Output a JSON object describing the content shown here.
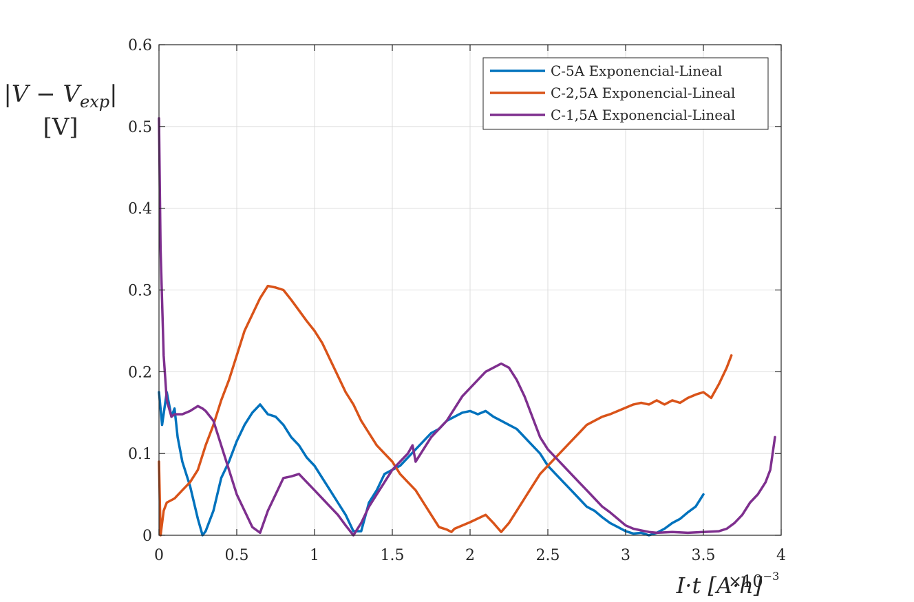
{
  "chart_data": {
    "type": "line",
    "title": "",
    "xlabel": "I·t [A·h]",
    "ylabel_line1": "|V − V",
    "ylabel_sub": "exp",
    "ylabel_line1_end": "|",
    "ylabel_line2": "[V]",
    "x_exponent_label": "×10",
    "x_exponent_power": "−3",
    "xlim": [
      0,
      4
    ],
    "ylim": [
      0,
      0.6
    ],
    "xticks": [
      0,
      0.5,
      1,
      1.5,
      2,
      2.5,
      3,
      3.5,
      4
    ],
    "xtick_labels": [
      "0",
      "0.5",
      "1",
      "1.5",
      "2",
      "2.5",
      "3",
      "3.5",
      "4"
    ],
    "yticks": [
      0,
      0.1,
      0.2,
      0.3,
      0.4,
      0.5,
      0.6
    ],
    "ytick_labels": [
      "0",
      "0.1",
      "0.2",
      "0.3",
      "0.4",
      "0.5",
      "0.6"
    ],
    "grid": true,
    "legend_position": "top-right",
    "series": [
      {
        "name": "C-5A Exponencial-Lineal",
        "color": "#0072BD",
        "points": [
          [
            0,
            0.175
          ],
          [
            0.02,
            0.135
          ],
          [
            0.05,
            0.175
          ],
          [
            0.08,
            0.145
          ],
          [
            0.1,
            0.155
          ],
          [
            0.12,
            0.12
          ],
          [
            0.15,
            0.09
          ],
          [
            0.2,
            0.06
          ],
          [
            0.25,
            0.02
          ],
          [
            0.28,
            0.0
          ],
          [
            0.3,
            0.005
          ],
          [
            0.35,
            0.03
          ],
          [
            0.4,
            0.07
          ],
          [
            0.45,
            0.09
          ],
          [
            0.5,
            0.115
          ],
          [
            0.55,
            0.135
          ],
          [
            0.6,
            0.15
          ],
          [
            0.65,
            0.16
          ],
          [
            0.7,
            0.148
          ],
          [
            0.75,
            0.145
          ],
          [
            0.8,
            0.135
          ],
          [
            0.85,
            0.12
          ],
          [
            0.9,
            0.11
          ],
          [
            0.95,
            0.095
          ],
          [
            1.0,
            0.085
          ],
          [
            1.05,
            0.07
          ],
          [
            1.1,
            0.055
          ],
          [
            1.15,
            0.04
          ],
          [
            1.2,
            0.025
          ],
          [
            1.25,
            0.005
          ],
          [
            1.3,
            0.005
          ],
          [
            1.35,
            0.04
          ],
          [
            1.4,
            0.055
          ],
          [
            1.45,
            0.075
          ],
          [
            1.5,
            0.08
          ],
          [
            1.55,
            0.085
          ],
          [
            1.6,
            0.095
          ],
          [
            1.65,
            0.105
          ],
          [
            1.7,
            0.115
          ],
          [
            1.75,
            0.125
          ],
          [
            1.8,
            0.13
          ],
          [
            1.85,
            0.14
          ],
          [
            1.9,
            0.145
          ],
          [
            1.95,
            0.15
          ],
          [
            2.0,
            0.152
          ],
          [
            2.05,
            0.148
          ],
          [
            2.1,
            0.152
          ],
          [
            2.15,
            0.145
          ],
          [
            2.2,
            0.14
          ],
          [
            2.25,
            0.135
          ],
          [
            2.3,
            0.13
          ],
          [
            2.35,
            0.12
          ],
          [
            2.4,
            0.11
          ],
          [
            2.45,
            0.1
          ],
          [
            2.5,
            0.085
          ],
          [
            2.55,
            0.075
          ],
          [
            2.6,
            0.065
          ],
          [
            2.65,
            0.055
          ],
          [
            2.7,
            0.045
          ],
          [
            2.75,
            0.035
          ],
          [
            2.8,
            0.03
          ],
          [
            2.85,
            0.022
          ],
          [
            2.9,
            0.015
          ],
          [
            2.95,
            0.01
          ],
          [
            3.0,
            0.005
          ],
          [
            3.05,
            0.002
          ],
          [
            3.1,
            0.003
          ],
          [
            3.15,
            0.0
          ],
          [
            3.2,
            0.003
          ],
          [
            3.25,
            0.008
          ],
          [
            3.3,
            0.015
          ],
          [
            3.35,
            0.02
          ],
          [
            3.4,
            0.028
          ],
          [
            3.45,
            0.035
          ],
          [
            3.5,
            0.05
          ]
        ]
      },
      {
        "name": "C-2,5A Exponencial-Lineal",
        "color": "#D95319",
        "points": [
          [
            0,
            0.09
          ],
          [
            0.01,
            0.0
          ],
          [
            0.03,
            0.03
          ],
          [
            0.05,
            0.04
          ],
          [
            0.1,
            0.045
          ],
          [
            0.15,
            0.055
          ],
          [
            0.2,
            0.065
          ],
          [
            0.25,
            0.08
          ],
          [
            0.3,
            0.11
          ],
          [
            0.35,
            0.135
          ],
          [
            0.4,
            0.165
          ],
          [
            0.45,
            0.19
          ],
          [
            0.5,
            0.22
          ],
          [
            0.55,
            0.25
          ],
          [
            0.6,
            0.27
          ],
          [
            0.65,
            0.29
          ],
          [
            0.7,
            0.305
          ],
          [
            0.75,
            0.303
          ],
          [
            0.8,
            0.3
          ],
          [
            0.85,
            0.288
          ],
          [
            0.9,
            0.275
          ],
          [
            0.95,
            0.262
          ],
          [
            1.0,
            0.25
          ],
          [
            1.05,
            0.235
          ],
          [
            1.1,
            0.215
          ],
          [
            1.15,
            0.195
          ],
          [
            1.2,
            0.175
          ],
          [
            1.25,
            0.16
          ],
          [
            1.3,
            0.14
          ],
          [
            1.35,
            0.125
          ],
          [
            1.4,
            0.11
          ],
          [
            1.45,
            0.1
          ],
          [
            1.5,
            0.09
          ],
          [
            1.55,
            0.075
          ],
          [
            1.6,
            0.065
          ],
          [
            1.65,
            0.055
          ],
          [
            1.7,
            0.04
          ],
          [
            1.75,
            0.025
          ],
          [
            1.8,
            0.01
          ],
          [
            1.85,
            0.007
          ],
          [
            1.88,
            0.004
          ],
          [
            1.9,
            0.008
          ],
          [
            2.0,
            0.016
          ],
          [
            2.1,
            0.025
          ],
          [
            2.15,
            0.015
          ],
          [
            2.2,
            0.004
          ],
          [
            2.25,
            0.015
          ],
          [
            2.3,
            0.03
          ],
          [
            2.35,
            0.045
          ],
          [
            2.4,
            0.06
          ],
          [
            2.45,
            0.075
          ],
          [
            2.5,
            0.085
          ],
          [
            2.55,
            0.095
          ],
          [
            2.6,
            0.105
          ],
          [
            2.65,
            0.115
          ],
          [
            2.7,
            0.125
          ],
          [
            2.75,
            0.135
          ],
          [
            2.8,
            0.14
          ],
          [
            2.85,
            0.145
          ],
          [
            2.9,
            0.148
          ],
          [
            2.95,
            0.152
          ],
          [
            3.0,
            0.156
          ],
          [
            3.05,
            0.16
          ],
          [
            3.1,
            0.162
          ],
          [
            3.15,
            0.16
          ],
          [
            3.2,
            0.165
          ],
          [
            3.25,
            0.16
          ],
          [
            3.3,
            0.165
          ],
          [
            3.35,
            0.162
          ],
          [
            3.4,
            0.168
          ],
          [
            3.45,
            0.172
          ],
          [
            3.5,
            0.175
          ],
          [
            3.55,
            0.168
          ],
          [
            3.6,
            0.185
          ],
          [
            3.65,
            0.205
          ],
          [
            3.68,
            0.22
          ]
        ]
      },
      {
        "name": "C-1,5A Exponencial-Lineal",
        "color": "#7E2F8E",
        "points": [
          [
            0,
            0.51
          ],
          [
            0.01,
            0.35
          ],
          [
            0.03,
            0.22
          ],
          [
            0.05,
            0.165
          ],
          [
            0.08,
            0.145
          ],
          [
            0.1,
            0.148
          ],
          [
            0.15,
            0.148
          ],
          [
            0.2,
            0.152
          ],
          [
            0.25,
            0.158
          ],
          [
            0.28,
            0.155
          ],
          [
            0.3,
            0.152
          ],
          [
            0.35,
            0.14
          ],
          [
            0.4,
            0.11
          ],
          [
            0.45,
            0.08
          ],
          [
            0.5,
            0.05
          ],
          [
            0.55,
            0.03
          ],
          [
            0.6,
            0.01
          ],
          [
            0.65,
            0.003
          ],
          [
            0.7,
            0.03
          ],
          [
            0.75,
            0.05
          ],
          [
            0.8,
            0.07
          ],
          [
            0.85,
            0.072
          ],
          [
            0.9,
            0.075
          ],
          [
            0.95,
            0.065
          ],
          [
            1.0,
            0.055
          ],
          [
            1.05,
            0.045
          ],
          [
            1.1,
            0.035
          ],
          [
            1.15,
            0.025
          ],
          [
            1.2,
            0.012
          ],
          [
            1.25,
            0.0
          ],
          [
            1.3,
            0.015
          ],
          [
            1.35,
            0.035
          ],
          [
            1.4,
            0.05
          ],
          [
            1.45,
            0.065
          ],
          [
            1.5,
            0.08
          ],
          [
            1.55,
            0.09
          ],
          [
            1.6,
            0.1
          ],
          [
            1.63,
            0.11
          ],
          [
            1.65,
            0.09
          ],
          [
            1.7,
            0.105
          ],
          [
            1.75,
            0.12
          ],
          [
            1.8,
            0.13
          ],
          [
            1.85,
            0.14
          ],
          [
            1.9,
            0.155
          ],
          [
            1.95,
            0.17
          ],
          [
            2.0,
            0.18
          ],
          [
            2.05,
            0.19
          ],
          [
            2.1,
            0.2
          ],
          [
            2.15,
            0.205
          ],
          [
            2.2,
            0.21
          ],
          [
            2.25,
            0.205
          ],
          [
            2.3,
            0.19
          ],
          [
            2.35,
            0.17
          ],
          [
            2.4,
            0.145
          ],
          [
            2.45,
            0.12
          ],
          [
            2.5,
            0.105
          ],
          [
            2.55,
            0.095
          ],
          [
            2.6,
            0.085
          ],
          [
            2.65,
            0.075
          ],
          [
            2.7,
            0.065
          ],
          [
            2.75,
            0.055
          ],
          [
            2.8,
            0.045
          ],
          [
            2.85,
            0.035
          ],
          [
            2.9,
            0.028
          ],
          [
            2.95,
            0.02
          ],
          [
            3.0,
            0.012
          ],
          [
            3.05,
            0.008
          ],
          [
            3.1,
            0.006
          ],
          [
            3.15,
            0.004
          ],
          [
            3.2,
            0.003
          ],
          [
            3.3,
            0.004
          ],
          [
            3.4,
            0.003
          ],
          [
            3.5,
            0.004
          ],
          [
            3.6,
            0.005
          ],
          [
            3.65,
            0.008
          ],
          [
            3.7,
            0.015
          ],
          [
            3.75,
            0.025
          ],
          [
            3.8,
            0.04
          ],
          [
            3.85,
            0.05
          ],
          [
            3.9,
            0.065
          ],
          [
            3.93,
            0.08
          ],
          [
            3.96,
            0.12
          ]
        ]
      }
    ]
  }
}
